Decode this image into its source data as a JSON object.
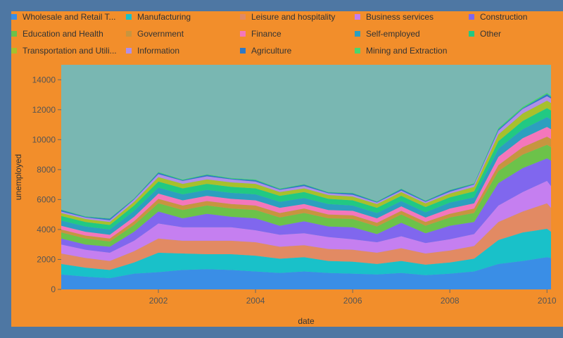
{
  "chart_data": {
    "type": "area",
    "stacked": true,
    "xlabel": "date",
    "ylabel": "unemployed",
    "ylim": [
      0,
      15000
    ],
    "yticks": [
      0,
      2000,
      4000,
      6000,
      8000,
      10000,
      12000,
      14000
    ],
    "xlim": [
      "2000-01",
      "2010-02"
    ],
    "xticks": [
      "2002",
      "2004",
      "2006",
      "2008",
      "2010"
    ],
    "grid": false,
    "legend_position": "top",
    "dates": [
      "2000-01",
      "2000-07",
      "2001-01",
      "2001-07",
      "2002-01",
      "2002-07",
      "2003-01",
      "2003-07",
      "2004-01",
      "2004-07",
      "2005-01",
      "2005-07",
      "2006-01",
      "2006-07",
      "2007-01",
      "2007-07",
      "2008-01",
      "2008-07",
      "2009-01",
      "2009-07",
      "2010-01",
      "2010-02"
    ],
    "series": [
      {
        "name": "Wholesale and Retail T...",
        "color": "#3a8ee6",
        "values": [
          1000,
          850,
          750,
          1050,
          1150,
          1300,
          1350,
          1300,
          1200,
          1100,
          1200,
          1100,
          1050,
          1000,
          1100,
          950,
          1050,
          1200,
          1700,
          1900,
          2150,
          2100
        ]
      },
      {
        "name": "Manufacturing",
        "color": "#19c1c9",
        "values": [
          700,
          600,
          550,
          750,
          1300,
          1100,
          1000,
          1050,
          1050,
          950,
          950,
          800,
          800,
          700,
          800,
          700,
          750,
          850,
          1600,
          1900,
          1900,
          1750
        ]
      },
      {
        "name": "Leisure and hospitality",
        "color": "#e28a63",
        "values": [
          700,
          650,
          600,
          750,
          950,
          850,
          900,
          900,
          900,
          800,
          800,
          800,
          800,
          750,
          850,
          750,
          800,
          850,
          1200,
          1400,
          1700,
          1600
        ]
      },
      {
        "name": "Business services",
        "color": "#c57ff0",
        "values": [
          600,
          550,
          550,
          700,
          1000,
          900,
          900,
          900,
          800,
          800,
          800,
          800,
          700,
          700,
          800,
          700,
          750,
          800,
          1100,
          1300,
          1500,
          1450
        ]
      },
      {
        "name": "Construction",
        "color": "#8067ee",
        "values": [
          400,
          350,
          400,
          600,
          800,
          600,
          900,
          700,
          800,
          600,
          800,
          700,
          800,
          550,
          900,
          650,
          900,
          800,
          1500,
          1600,
          1500,
          1700
        ]
      },
      {
        "name": "Education and Health",
        "color": "#6cc24a",
        "values": [
          400,
          400,
          350,
          450,
          550,
          550,
          550,
          550,
          550,
          550,
          550,
          550,
          550,
          500,
          550,
          500,
          550,
          600,
          800,
          900,
          900,
          900
        ]
      },
      {
        "name": "Government",
        "color": "#c7953f",
        "values": [
          200,
          200,
          200,
          250,
          300,
          300,
          300,
          300,
          300,
          300,
          300,
          250,
          250,
          250,
          250,
          250,
          250,
          300,
          400,
          500,
          550,
          550
        ]
      },
      {
        "name": "Finance",
        "color": "#f477bb",
        "values": [
          250,
          250,
          250,
          300,
          350,
          350,
          350,
          350,
          350,
          350,
          300,
          300,
          300,
          300,
          300,
          300,
          350,
          350,
          550,
          600,
          650,
          650
        ]
      },
      {
        "name": "Self-employed",
        "color": "#2c9fbf",
        "values": [
          350,
          350,
          350,
          400,
          400,
          400,
          400,
          400,
          400,
          400,
          400,
          400,
          350,
          350,
          350,
          350,
          400,
          400,
          550,
          600,
          650,
          650
        ]
      },
      {
        "name": "Other",
        "color": "#21c983",
        "values": [
          300,
          300,
          300,
          350,
          400,
          400,
          400,
          400,
          400,
          400,
          400,
          350,
          350,
          350,
          350,
          350,
          350,
          400,
          500,
          550,
          600,
          600
        ]
      },
      {
        "name": "Transportation and Utili...",
        "color": "#a7c02c",
        "values": [
          200,
          200,
          200,
          250,
          300,
          300,
          300,
          300,
          300,
          250,
          250,
          250,
          250,
          250,
          250,
          250,
          250,
          300,
          450,
          500,
          500,
          500
        ]
      },
      {
        "name": "Information",
        "color": "#b08fe8",
        "values": [
          100,
          100,
          120,
          150,
          200,
          200,
          200,
          200,
          150,
          150,
          150,
          120,
          120,
          100,
          100,
          100,
          120,
          150,
          250,
          300,
          300,
          300
        ]
      },
      {
        "name": "Agriculture",
        "color": "#2f79c7",
        "values": [
          100,
          50,
          100,
          50,
          100,
          50,
          100,
          50,
          100,
          50,
          100,
          50,
          100,
          50,
          100,
          50,
          100,
          50,
          100,
          50,
          150,
          100
        ]
      },
      {
        "name": "Mining and Extraction",
        "color": "#4ad66e",
        "values": [
          30,
          30,
          30,
          30,
          40,
          40,
          40,
          40,
          40,
          40,
          30,
          30,
          30,
          30,
          30,
          30,
          30,
          40,
          80,
          90,
          80,
          80
        ]
      }
    ],
    "background_fill_color": "#79b7b2"
  }
}
